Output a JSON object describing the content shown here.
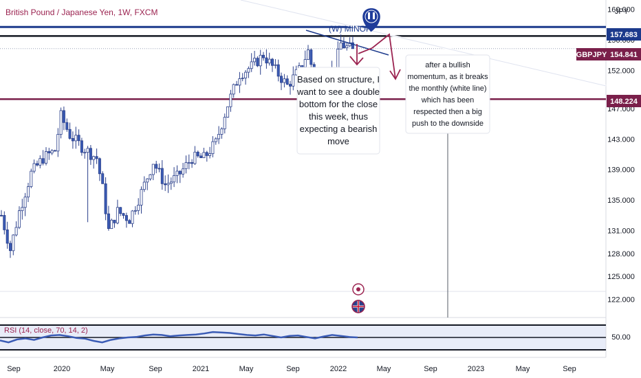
{
  "colors": {
    "background": "#ffffff",
    "up_candle": "#ffffff",
    "down_candle": "#3a5bb5",
    "candle_border": "#2a3f8a",
    "blue_line": "#1c3a8c",
    "maroon_line": "#7a1f4a",
    "rsi_line": "#3a5bb5",
    "rsi_band": "#e8ecf8",
    "marker": "#1f3c9a"
  },
  "header": {
    "title": "British Pound / Japanese Yen, 1W, FXCM",
    "currency": "JPY"
  },
  "price_tags": {
    "blue_level": "157.683",
    "current_symbol": "GBPJPY",
    "current_price": "154.841",
    "maroon_level": "148.224"
  },
  "annotations": {
    "pattern_label": "(W) MINOR",
    "note_left": [
      "Based on structure, I",
      "want to see a double",
      "bottom for the close",
      "this week, thus",
      "expecting a bearish",
      "move"
    ],
    "note_right": [
      "after a bullish",
      "momentum, as it breaks",
      "the monthly (white line)",
      "which has been",
      "respected then a big",
      "push to the downside"
    ]
  },
  "rsi": {
    "label": "RSI (14, close, 70, 14, 2)",
    "level_label": "50.00",
    "value_range": [
      0,
      100
    ]
  },
  "chart_data": {
    "type": "candlestick",
    "title": "British Pound / Japanese Yen, 1W, FXCM",
    "ylabel": "JPY",
    "ylim": [
      120.5,
      160.5
    ],
    "yticks": [
      "160.000",
      "156.000",
      "152.000",
      "147.000",
      "143.000",
      "139.000",
      "135.000",
      "131.000",
      "128.000",
      "125.000",
      "122.000"
    ],
    "xticks": [
      "Sep",
      "2020",
      "May",
      "Sep",
      "2021",
      "May",
      "Sep",
      "2022",
      "May",
      "Sep",
      "2023",
      "May",
      "Sep"
    ],
    "horizontal_levels": [
      157.683,
      156.5,
      148.224
    ],
    "current_price": 154.841,
    "anchors": [
      {
        "w": 0,
        "p": 133.0
      },
      {
        "w": 3,
        "p": 128.5
      },
      {
        "w": 6,
        "p": 133.5
      },
      {
        "w": 10,
        "p": 138.5
      },
      {
        "w": 14,
        "p": 140.5
      },
      {
        "w": 18,
        "p": 141.5
      },
      {
        "w": 20,
        "p": 146.0
      },
      {
        "w": 23,
        "p": 143.5
      },
      {
        "w": 27,
        "p": 142.0
      },
      {
        "w": 32,
        "p": 140.5
      },
      {
        "w": 34,
        "p": 136.5
      },
      {
        "w": 36,
        "p": 131.0
      },
      {
        "w": 39,
        "p": 133.5
      },
      {
        "w": 43,
        "p": 132.5
      },
      {
        "w": 47,
        "p": 136.0
      },
      {
        "w": 51,
        "p": 140.0
      },
      {
        "w": 55,
        "p": 137.0
      },
      {
        "w": 59,
        "p": 138.0
      },
      {
        "w": 64,
        "p": 140.5
      },
      {
        "w": 68,
        "p": 140.5
      },
      {
        "w": 72,
        "p": 142.5
      },
      {
        "w": 76,
        "p": 147.5
      },
      {
        "w": 80,
        "p": 151.5
      },
      {
        "w": 84,
        "p": 152.5
      },
      {
        "w": 88,
        "p": 154.0
      },
      {
        "w": 92,
        "p": 152.0
      },
      {
        "w": 96,
        "p": 150.0
      },
      {
        "w": 100,
        "p": 152.0
      },
      {
        "w": 103,
        "p": 154.5
      },
      {
        "w": 106,
        "p": 149.5
      },
      {
        "w": 109,
        "p": 150.5
      },
      {
        "w": 112,
        "p": 152.5
      },
      {
        "w": 114,
        "p": 155.5
      },
      {
        "w": 116,
        "p": 155.0
      },
      {
        "w": 118,
        "p": 154.8
      }
    ],
    "rsi_values": [
      38,
      30,
      42,
      46,
      40,
      50,
      58,
      60,
      55,
      48,
      45,
      36,
      30,
      40,
      46,
      50,
      52,
      58,
      62,
      60,
      55,
      58,
      60,
      62,
      66,
      72,
      70,
      68,
      64,
      60,
      58,
      62,
      56,
      50,
      56,
      58,
      52,
      46,
      54,
      60,
      56,
      52,
      50
    ]
  }
}
